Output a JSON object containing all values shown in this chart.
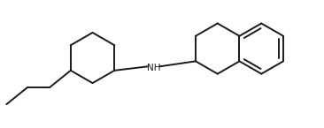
{
  "line_color": "#1a1a1a",
  "nh_color": "#1a1a1a",
  "background": "#ffffff",
  "line_width": 1.4,
  "fig_width": 3.66,
  "fig_height": 1.45,
  "dpi": 100,
  "xlim": [
    0,
    10.5
  ],
  "ylim": [
    0,
    3.9
  ]
}
